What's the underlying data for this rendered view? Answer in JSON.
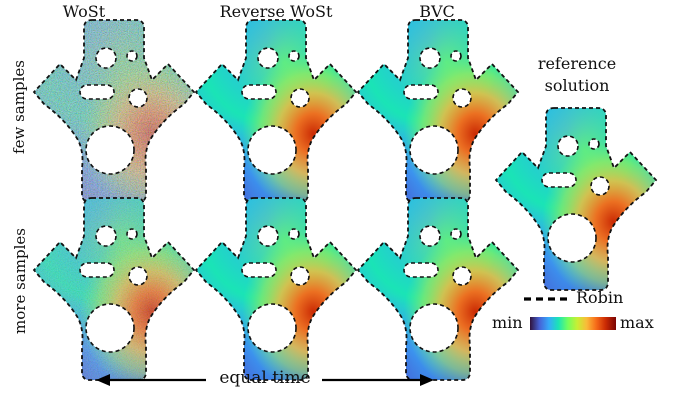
{
  "columns": [
    "WoSt",
    "Reverse WoSt",
    "BVC"
  ],
  "rows": [
    "few samples",
    "more samples"
  ],
  "reference": {
    "line1": "reference",
    "line2": "solution"
  },
  "time_label": "equal time",
  "legend": {
    "boundary_label": "Robin",
    "min_label": "min",
    "max_label": "max"
  },
  "colormap": [
    "#30123b",
    "#4662d7",
    "#36aaf9",
    "#1ae4b6",
    "#72fe5e",
    "#c8ef34",
    "#faba39",
    "#f66b19",
    "#ca2a04",
    "#7a0403"
  ]
}
